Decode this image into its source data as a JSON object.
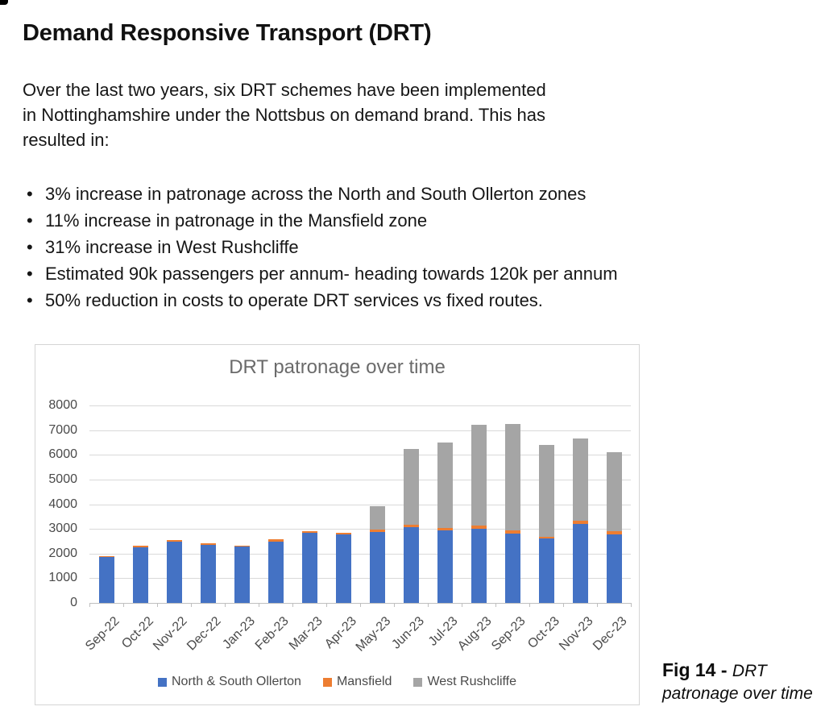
{
  "page": {
    "title": "Demand Responsive Transport (DRT)",
    "intro": "Over the last two years, six DRT schemes have been implemented in Nottinghamshire under the Nottsbus on demand brand. This has resulted in:",
    "bullets": [
      "3% increase in patronage across the North and South Ollerton zones",
      "11% increase in patronage in the Mansfield zone",
      "31% increase in West Rushcliffe",
      "Estimated 90k passengers per annum- heading towards 120k per annum",
      "50% reduction in costs to operate DRT services vs fixed routes."
    ],
    "figure": {
      "label": "Fig 14 - ",
      "title": "DRT patronage over time"
    }
  },
  "chart_data": {
    "type": "bar",
    "stacked": true,
    "title": "DRT patronage over time",
    "categories": [
      "Sep-22",
      "Oct-22",
      "Nov-22",
      "Dec-22",
      "Jan-23",
      "Feb-23",
      "Mar-23",
      "Apr-23",
      "May-23",
      "Jun-23",
      "Jul-23",
      "Aug-23",
      "Sep-23",
      "Oct-23",
      "Nov-23",
      "Dec-23"
    ],
    "series": [
      {
        "name": "North & South Ollerton",
        "color": "#4472C4",
        "values": [
          1850,
          2260,
          2470,
          2350,
          2270,
          2480,
          2840,
          2760,
          2880,
          3060,
          2930,
          3010,
          2820,
          2610,
          3210,
          2760
        ]
      },
      {
        "name": "Mansfield",
        "color": "#ED7D31",
        "values": [
          60,
          70,
          80,
          70,
          60,
          100,
          80,
          80,
          90,
          110,
          120,
          130,
          120,
          80,
          130,
          150
        ]
      },
      {
        "name": "West Rushcliffe",
        "color": "#A5A5A5",
        "values": [
          0,
          0,
          0,
          0,
          0,
          0,
          0,
          0,
          950,
          3070,
          3450,
          4080,
          4300,
          3720,
          3320,
          3200
        ]
      }
    ],
    "totals": [
      1910,
      2330,
      2550,
      2420,
      2330,
      2580,
      2920,
      2840,
      3920,
      6240,
      6500,
      7220,
      7240,
      6410,
      6660,
      6110
    ],
    "xlabel": "",
    "ylabel": "",
    "ylim": [
      0,
      8000
    ],
    "ytick_step": 1000,
    "grid": true,
    "legend_position": "bottom",
    "colors": {
      "gridline": "#d9d9d9",
      "axis_line": "#bfbfbf",
      "axis_text": "#4a4a4a",
      "title_text": "#6b6b6b"
    }
  }
}
